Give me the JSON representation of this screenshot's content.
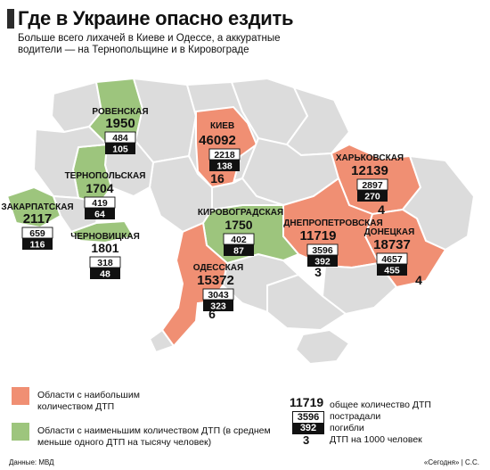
{
  "header": {
    "title": "Где в Украине опасно ездить",
    "subtitle": "Больше всего лихачей в Киеве и Одессе, а аккуратные водители — на Тернопольщине и в Кировограде"
  },
  "colors": {
    "high": "#f08f73",
    "low": "#9dc57d",
    "neutral": "#dcdcdc",
    "border": "#ffffff",
    "box_black": "#111111"
  },
  "regions": [
    {
      "name": "РОВЕНСКАЯ",
      "total": "1950",
      "injured": "484",
      "killed": "105",
      "per1000": "",
      "category": "low"
    },
    {
      "name": "КИЕВ",
      "total": "46092",
      "injured": "2218",
      "killed": "138",
      "per1000": "16",
      "category": "high"
    },
    {
      "name": "ХАРЬКОВСКАЯ",
      "total": "12139",
      "injured": "2897",
      "killed": "270",
      "per1000": "4",
      "category": "high"
    },
    {
      "name": "ТЕРНОПОЛЬСКАЯ",
      "total": "1704",
      "injured": "419",
      "killed": "64",
      "per1000": "",
      "category": "low"
    },
    {
      "name": "ЗАКАРПАТСКАЯ",
      "total": "2117",
      "injured": "659",
      "killed": "116",
      "per1000": "",
      "category": "low"
    },
    {
      "name": "ЧЕРНОВИЦКАЯ",
      "total": "1801",
      "injured": "318",
      "killed": "48",
      "per1000": "",
      "category": "low"
    },
    {
      "name": "КИРОВОГРАДСКАЯ",
      "total": "1750",
      "injured": "402",
      "killed": "87",
      "per1000": "",
      "category": "low"
    },
    {
      "name": "ДНЕПРОПЕТРОВСКАЯ",
      "total": "11719",
      "injured": "3596",
      "killed": "392",
      "per1000": "3",
      "category": "high"
    },
    {
      "name": "ДОНЕЦКАЯ",
      "total": "18737",
      "injured": "4657",
      "killed": "455",
      "per1000": "4",
      "category": "high"
    },
    {
      "name": "ОДЕССКАЯ",
      "total": "15372",
      "injured": "3043",
      "killed": "323",
      "per1000": "6",
      "category": "high"
    }
  ],
  "legend": {
    "high_label": "Области с наибольшим количеством ДТП",
    "low_label": "Области с наименьшим количеством ДТП (в среднем меньше одного ДТП на тысячу человек)"
  },
  "key": {
    "total": "11719",
    "injured": "3596",
    "killed": "392",
    "per1000": "3",
    "total_label": "общее количество ДТП",
    "injured_label": "пострадали",
    "killed_label": "погибли",
    "per1000_label": "ДТП на 1000 человек"
  },
  "footer": {
    "source": "Данные: МВД",
    "credit": "«Сегодня» | С.С."
  }
}
